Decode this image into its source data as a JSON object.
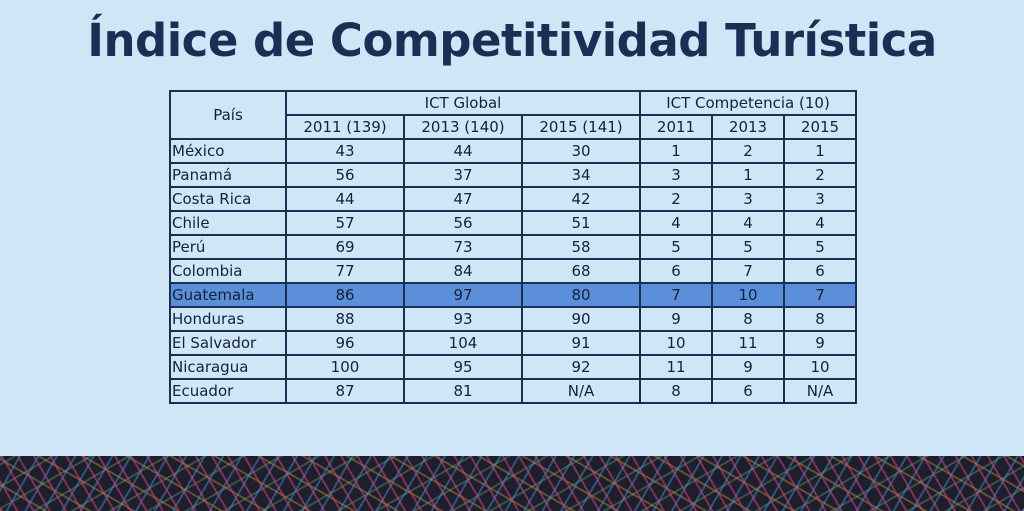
{
  "title": "Índice de Competitividad Turística",
  "colors": {
    "background": "#cfe6f7",
    "title": "#1b2f55",
    "highlight_row": "#5b8fd9",
    "border": "#1b2f55"
  },
  "table": {
    "header_country": "País",
    "group_global": "ICT Global",
    "group_competencia": "ICT Competencia (10)",
    "sub_headers": [
      "2011 (139)",
      "2013 (140)",
      "2015 (141)",
      "2011",
      "2013",
      "2015"
    ],
    "highlighted_row": "Guatemala",
    "rows": [
      [
        "México",
        "43",
        "44",
        "30",
        "1",
        "2",
        "1"
      ],
      [
        "Panamá",
        "56",
        "37",
        "34",
        "3",
        "1",
        "2"
      ],
      [
        "Costa Rica",
        "44",
        "47",
        "42",
        "2",
        "3",
        "3"
      ],
      [
        "Chile",
        "57",
        "56",
        "51",
        "4",
        "4",
        "4"
      ],
      [
        "Perú",
        "69",
        "73",
        "58",
        "5",
        "5",
        "5"
      ],
      [
        "Colombia",
        "77",
        "84",
        "68",
        "6",
        "7",
        "6"
      ],
      [
        "Guatemala",
        "86",
        "97",
        "80",
        "7",
        "10",
        "7"
      ],
      [
        "Honduras",
        "88",
        "93",
        "90",
        "9",
        "8",
        "8"
      ],
      [
        "El Salvador",
        "96",
        "104",
        "91",
        "10",
        "11",
        "9"
      ],
      [
        "Nicaragua",
        "100",
        "95",
        "92",
        "11",
        "9",
        "10"
      ],
      [
        "Ecuador",
        "87",
        "81",
        "N/A",
        "8",
        "6",
        "N/A"
      ]
    ]
  }
}
